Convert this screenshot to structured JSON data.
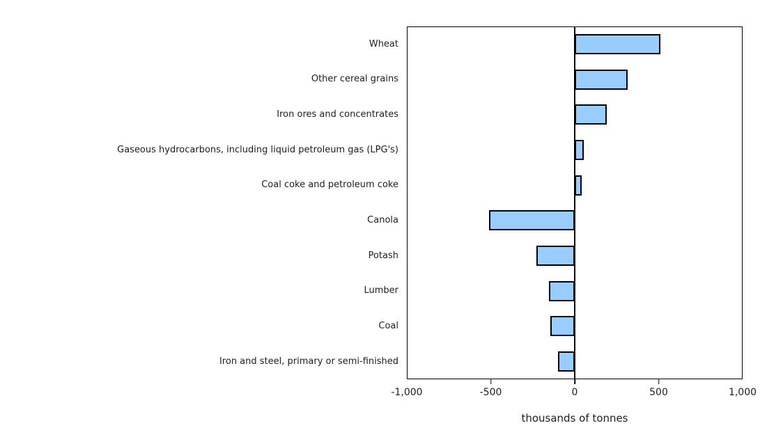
{
  "chart_data": {
    "type": "bar",
    "orientation": "horizontal",
    "title": "",
    "categories": [
      "Wheat",
      "Other cereal grains",
      "Iron ores and concentrates",
      "Gaseous hydrocarbons, including liquid petroleum gas (LPG's)",
      "Coal coke and petroleum coke",
      "Canola",
      "Potash",
      "Lumber",
      "Coal",
      "Iron and steel, primary or semi-finished"
    ],
    "values": [
      510,
      315,
      190,
      55,
      40,
      -510,
      -230,
      -155,
      -145,
      -100
    ],
    "xlabel": "thousands of tonnes",
    "ylabel": "",
    "xlim": [
      -1000,
      1000
    ],
    "x_ticks": [
      -1000,
      -500,
      0,
      500,
      1000
    ],
    "x_tick_labels": [
      "-1,000",
      "-500",
      "0",
      "500",
      "1,000"
    ],
    "grid": false,
    "legend": "none",
    "bar_color": "#99CCFF",
    "bar_border_color": "#000000",
    "frame_color": "#000000",
    "text_color": "#1c1e26"
  }
}
